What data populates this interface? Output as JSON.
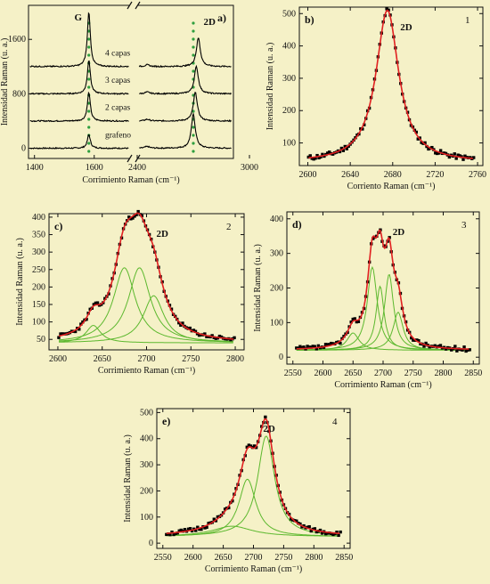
{
  "figure": {
    "background": "#f5f1c7",
    "colors": {
      "data": "#000000",
      "fit": "#e02020",
      "component": "#5cb82e",
      "marker": "#2e9e3e",
      "axis": "#111111"
    }
  },
  "chart_data": [
    {
      "id": "a",
      "panel_label": "a)",
      "type": "line",
      "xlabel": "Corrimiento Raman (cm⁻¹)",
      "ylabel": "Intensidad Raman (u. a.)",
      "broken_x_axis": true,
      "xlim_left": [
        1380,
        1720
      ],
      "xlim_right": [
        2400,
        2880
      ],
      "ylim": [
        -150,
        2100
      ],
      "x_ticks_left": [
        1400,
        1600
      ],
      "x_ticks_right": [
        2400,
        3000
      ],
      "y_ticks": [
        0,
        800,
        1600
      ],
      "peak_labels": [
        {
          "text": "G",
          "x": 1582
        },
        {
          "text": "2D",
          "x": 2690
        }
      ],
      "series": [
        {
          "name": "grafeno",
          "offset": 0,
          "g_height": 200,
          "d_height": 500,
          "d_center": 2680
        },
        {
          "name": "2 capas",
          "offset": 400,
          "g_height": 420,
          "d_height": 420,
          "d_center": 2690
        },
        {
          "name": "3 capas",
          "offset": 800,
          "g_height": 500,
          "d_height": 400,
          "d_center": 2695
        },
        {
          "name": "4 capas",
          "offset": 1200,
          "g_height": 800,
          "d_height": 420,
          "d_center": 2705
        }
      ]
    },
    {
      "id": "b",
      "panel_label": "b)",
      "corner_number": "1",
      "peak_label": "2D",
      "type": "line",
      "xlabel": "Corriento Raman (cm⁻¹)",
      "ylabel": "Intensidad Raman (u. a.)",
      "xlim": [
        2592,
        2765
      ],
      "ylim": [
        30,
        520
      ],
      "x_ticks": [
        2600,
        2640,
        2680,
        2720,
        2760
      ],
      "y_ticks": [
        100,
        200,
        300,
        400,
        500
      ],
      "baseline": 40,
      "fit": {
        "center": 2675,
        "width": 13,
        "height": 470
      },
      "components": []
    },
    {
      "id": "c",
      "panel_label": "c)",
      "corner_number": "2",
      "peak_label": "2D",
      "type": "line",
      "xlabel": "Corrimiento Raman (cm⁻¹)",
      "ylabel": "Intensidad Raman (u. a.)",
      "xlim": [
        2590,
        2810
      ],
      "ylim": [
        20,
        410
      ],
      "x_ticks": [
        2600,
        2650,
        2700,
        2750,
        2800
      ],
      "y_ticks": [
        50,
        100,
        150,
        200,
        250,
        300,
        350,
        400
      ],
      "baseline": 40,
      "components": [
        {
          "center": 2640,
          "width": 10,
          "height": 50
        },
        {
          "center": 2675,
          "width": 15,
          "height": 215
        },
        {
          "center": 2692,
          "width": 15,
          "height": 215
        },
        {
          "center": 2708,
          "width": 14,
          "height": 135
        }
      ]
    },
    {
      "id": "d",
      "panel_label": "d)",
      "corner_number": "3",
      "peak_label": "2D",
      "type": "line",
      "xlabel": "Corrimiento Raman (cm⁻¹)",
      "ylabel": "Intensidad Raman (u. a.)",
      "xlim": [
        2540,
        2860
      ],
      "ylim": [
        -20,
        420
      ],
      "x_ticks": [
        2550,
        2600,
        2650,
        2700,
        2750,
        2800,
        2850
      ],
      "y_ticks": [
        0,
        100,
        200,
        300,
        400
      ],
      "baseline": 20,
      "components": [
        {
          "center": 2650,
          "width": 12,
          "height": 50
        },
        {
          "center": 2682,
          "width": 10,
          "height": 240
        },
        {
          "center": 2695,
          "width": 8,
          "height": 185
        },
        {
          "center": 2710,
          "width": 9,
          "height": 220
        },
        {
          "center": 2725,
          "width": 10,
          "height": 110
        }
      ]
    },
    {
      "id": "e",
      "panel_label": "e)",
      "corner_number": "4",
      "peak_label": "2D",
      "type": "line",
      "xlabel": "Corrimiento Raman (cm⁻¹)",
      "ylabel": "Intensidad Raman (u. a.)",
      "xlim": [
        2540,
        2860
      ],
      "ylim": [
        -20,
        515
      ],
      "x_ticks": [
        2550,
        2600,
        2650,
        2700,
        2750,
        2800,
        2850
      ],
      "y_ticks": [
        0,
        100,
        200,
        300,
        400,
        500
      ],
      "baseline": 25,
      "components": [
        {
          "center": 2665,
          "width": 40,
          "height": 40
        },
        {
          "center": 2690,
          "width": 17,
          "height": 220
        },
        {
          "center": 2721,
          "width": 17,
          "height": 385
        }
      ]
    }
  ]
}
